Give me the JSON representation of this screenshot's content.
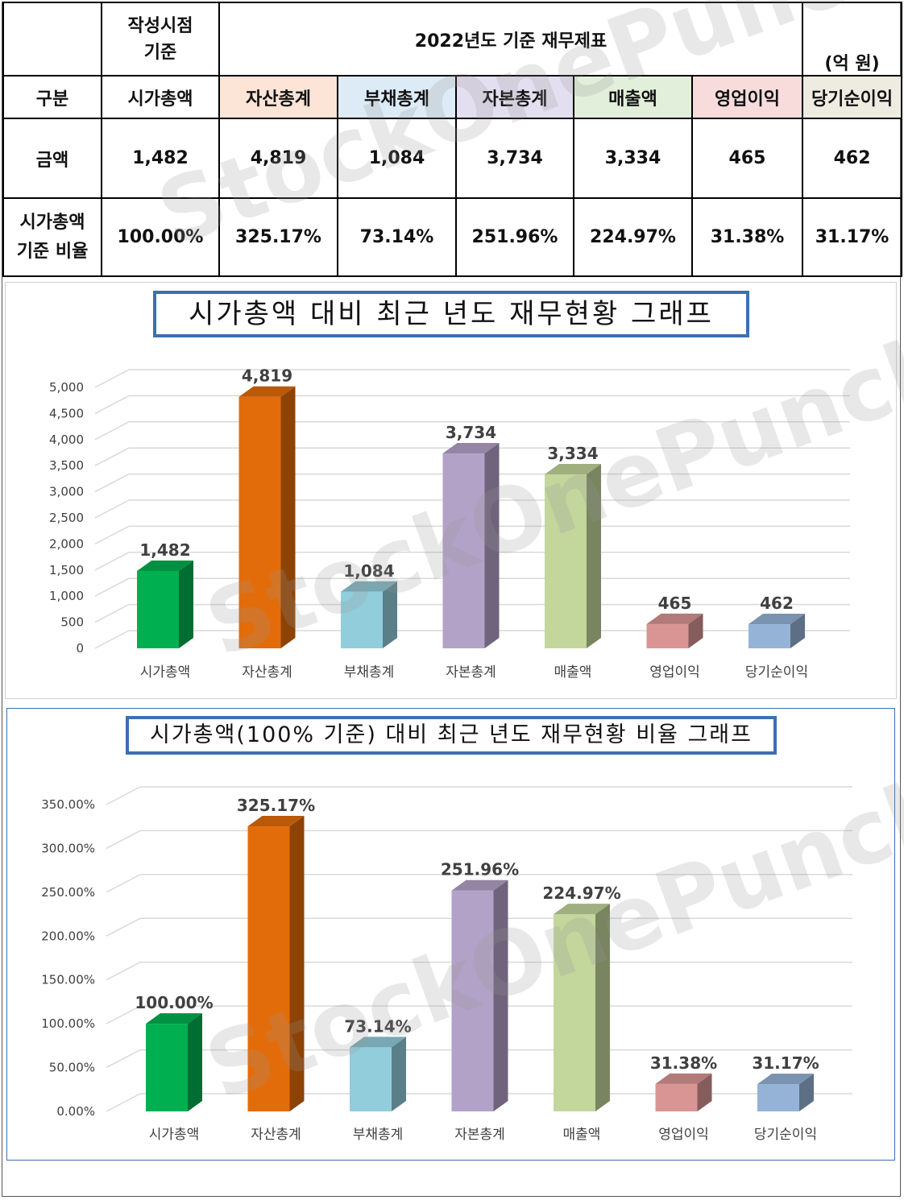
{
  "table": {
    "row1": {
      "basis_label": "작성시점\n기준",
      "title": "2022년도 기준 재무제표",
      "unit": "(억 원)"
    },
    "headers": [
      "구분",
      "시가총액",
      "자산총계",
      "부채총계",
      "자본총계",
      "매출액",
      "영업이익",
      "당기순이익"
    ],
    "header_colors": [
      "#ffffff",
      "#ffffff",
      "#fce4d6",
      "#ddebf7",
      "#e4dff0",
      "#e2efda",
      "#f8dcdc",
      "#eeece1"
    ],
    "amount_row": {
      "label": "금액",
      "values": [
        "1,482",
        "4,819",
        "1,084",
        "3,734",
        "3,334",
        "465",
        "462"
      ]
    },
    "ratio_row": {
      "label": "시가총액\n기준 비율",
      "values": [
        "100.00%",
        "325.17%",
        "73.14%",
        "251.96%",
        "224.97%",
        "31.38%",
        "31.17%"
      ]
    }
  },
  "watermark": "StockOnePunch",
  "chart_data": [
    {
      "type": "bar",
      "title": "시가총액 대비 최근 년도 재무현황 그래프",
      "categories": [
        "시가총액",
        "자산총계",
        "부채총계",
        "자본총계",
        "매출액",
        "영업이익",
        "당기순이익"
      ],
      "values": [
        1482,
        4819,
        1084,
        3734,
        3334,
        465,
        462
      ],
      "data_labels": [
        "1,482",
        "4,819",
        "1,084",
        "3,734",
        "3,334",
        "465",
        "462"
      ],
      "ylim": [
        0,
        5000
      ],
      "yticks": [
        "0",
        "500",
        "1,000",
        "1,500",
        "2,000",
        "2,500",
        "3,000",
        "3,500",
        "4,000",
        "4,500",
        "5,000"
      ],
      "grid": true,
      "colors": [
        "#00b050",
        "#e36c0a",
        "#92cddc",
        "#b3a2c7",
        "#c3d69b",
        "#d99594",
        "#95b3d7"
      ]
    },
    {
      "type": "bar",
      "title": "시가총액(100% 기준) 대비 최근 년도 재무현황 비율 그래프",
      "categories": [
        "시가총액",
        "자산총계",
        "부채총계",
        "자본총계",
        "매출액",
        "영업이익",
        "당기순이익"
      ],
      "values": [
        100.0,
        325.17,
        73.14,
        251.96,
        224.97,
        31.38,
        31.17
      ],
      "data_labels": [
        "100.00%",
        "325.17%",
        "73.14%",
        "251.96%",
        "224.97%",
        "31.38%",
        "31.17%"
      ],
      "ylim": [
        0,
        350
      ],
      "yticks": [
        "0.00%",
        "50.00%",
        "100.00%",
        "150.00%",
        "200.00%",
        "250.00%",
        "300.00%",
        "350.00%"
      ],
      "grid": true,
      "colors": [
        "#00b050",
        "#e36c0a",
        "#92cddc",
        "#b3a2c7",
        "#c3d69b",
        "#d99594",
        "#95b3d7"
      ]
    }
  ]
}
